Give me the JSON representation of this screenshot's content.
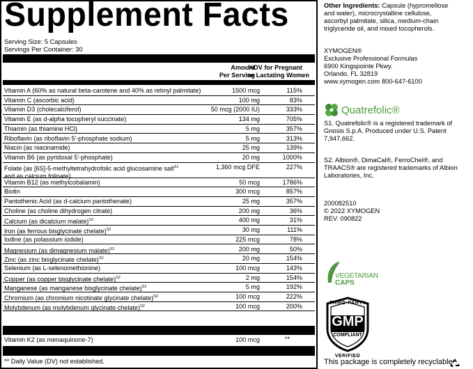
{
  "panel": {
    "title": "Supplement Facts",
    "serving_size": "Serving Size: 5 Capsules",
    "servings_per_container": "Servings Per Container: 30",
    "col_amount": [
      "Amount",
      "Per Serving"
    ],
    "col_dv": [
      "%DV for Pregnant",
      "or Lactating Women"
    ],
    "rows": [
      {
        "name": "Vitamin A (60% as natural beta-carotene and 40% as retinyl palmitate)",
        "amount": "1500 mcg",
        "dv": "115%"
      },
      {
        "name": "Vitamin C (ascorbic acid)",
        "amount": "100 mg",
        "dv": "83%"
      },
      {
        "name": "Vitamin D3 (cholecalciferol)",
        "amount": "50 mcg (2000 IU)",
        "dv": "333%"
      },
      {
        "name": "Vitamin E (as d-alpha tocopheryl succinate)",
        "amount": "134 mg",
        "dv": "705%"
      },
      {
        "name": "Thiamin (as thiamine HCl)",
        "amount": "5 mg",
        "dv": "357%"
      },
      {
        "name": "Riboflavin (as riboflavin 5'-phosphate sodium)",
        "amount": "5 mg",
        "dv": "313%"
      },
      {
        "name": "Niacin (as niacinamide)",
        "amount": "25 mg",
        "dv": "139%"
      },
      {
        "name": "Vitamin B6 (as pyridoxal 5'-phosphate)",
        "amount": "20 mg",
        "dv": "1000%"
      },
      {
        "name": "Folate (as [6S]-5-methyltetrahydrofolic acid glucosamine salt",
        "sup": "S1",
        "name2": "and as calcium folinate)",
        "amount": "1,360 mcg DFE",
        "dv": "227%"
      },
      {
        "name": "Vitamin B12 (as methylcobalamin)",
        "amount": "50 mcg",
        "dv": "1786%"
      },
      {
        "name": "Biotin",
        "amount": "300 mcg",
        "dv": "857%"
      },
      {
        "name": "Pantothenic Acid (as d-calcium pantothenate)",
        "amount": "25 mg",
        "dv": "357%"
      },
      {
        "name": "Choline (as choline dihydrogen citrate)",
        "amount": "200 mg",
        "dv": "36%"
      },
      {
        "name": "Calcium (as dicalcium malate)",
        "sup": "S2",
        "amount": "400 mg",
        "dv": "31%"
      },
      {
        "name": "Iron (as ferrous bisglycinate chelate)",
        "sup": "S2",
        "amount": "30 mg",
        "dv": "111%"
      },
      {
        "name": "Iodine (as potassium iodide)",
        "amount": "225 mcg",
        "dv": "78%"
      },
      {
        "name": "Magnesium (as dimagnesium malate)",
        "sup": "S2",
        "amount": "200 mg",
        "dv": "50%"
      },
      {
        "name": "Zinc (as zinc bisglycinate chelate)",
        "sup": "S2",
        "amount": "20 mg",
        "dv": "154%"
      },
      {
        "name": "Selenium (as L-selenomethionine)",
        "amount": "100 mcg",
        "dv": "143%"
      },
      {
        "name": "Copper (as copper bisglycinate chelate)",
        "sup": "S2",
        "amount": "2 mg",
        "dv": "154%"
      },
      {
        "name": "Manganese (as manganese bisglycinate chelate)",
        "sup": "S2",
        "amount": "5 mg",
        "dv": "192%"
      },
      {
        "name": "Chromium (as chromium nicotinate glycinate chelate)",
        "sup": "S2",
        "amount": "100 mcg",
        "dv": "222%"
      },
      {
        "name": "Molybdenum (as molybdenum glycinate chelate)",
        "sup": "S2",
        "amount": "100 mcg",
        "dv": "200%"
      }
    ],
    "k2": {
      "name": "Vitamin K2 (as menaquinone-7)",
      "amount": "100 mcg",
      "dv": "**"
    },
    "footnote": "** Daily Value (DV) not established."
  },
  "side": {
    "other_label": "Other Ingredients:",
    "other_lines": [
      " Capsule (hypromellose",
      "and water), microcrystalline cellulose,",
      "ascorbyl palmitate, silica, medium-chain",
      "triglyceride oil, and mixed tocopherols."
    ],
    "company": [
      "XYMOGEN®",
      "Exclusive Professional Formulas",
      "6900 Kingspointe Pkwy.",
      "Orlando, FL 32819"
    ],
    "website": "www.xymogen.com",
    "phone": "800-647-6100",
    "quatrefolic_logo": "Quatrefolic®",
    "s1_lines": [
      "S1. Quatrefolic® is a registered trademark of",
      "Gnosis S.p.A. Produced under U.S. Patent",
      "7,947,662."
    ],
    "s2_lines": [
      "S2. Albion®, DimaCal®, FerroChel®, and",
      "TRAACS® are registered trademarks of Albion",
      "Laboratories, Inc."
    ],
    "codes": [
      "200082510",
      "© 2022 XYMOGEN",
      "REV. 090822"
    ],
    "veg_badge": [
      "VEGETARIAN",
      "CAPS"
    ],
    "gmp_badge": {
      "top": "THIRD-PARTY",
      "big": "GMP",
      "mid": "COMPLIANT",
      "bottom": "VERIFIED"
    },
    "recycle_note": "This package is completely recyclable",
    "icons": [
      "quatrefolic-clover-icon",
      "vegetarian-leaf-icon",
      "gmp-shield-icon",
      "recycle-icon"
    ]
  }
}
